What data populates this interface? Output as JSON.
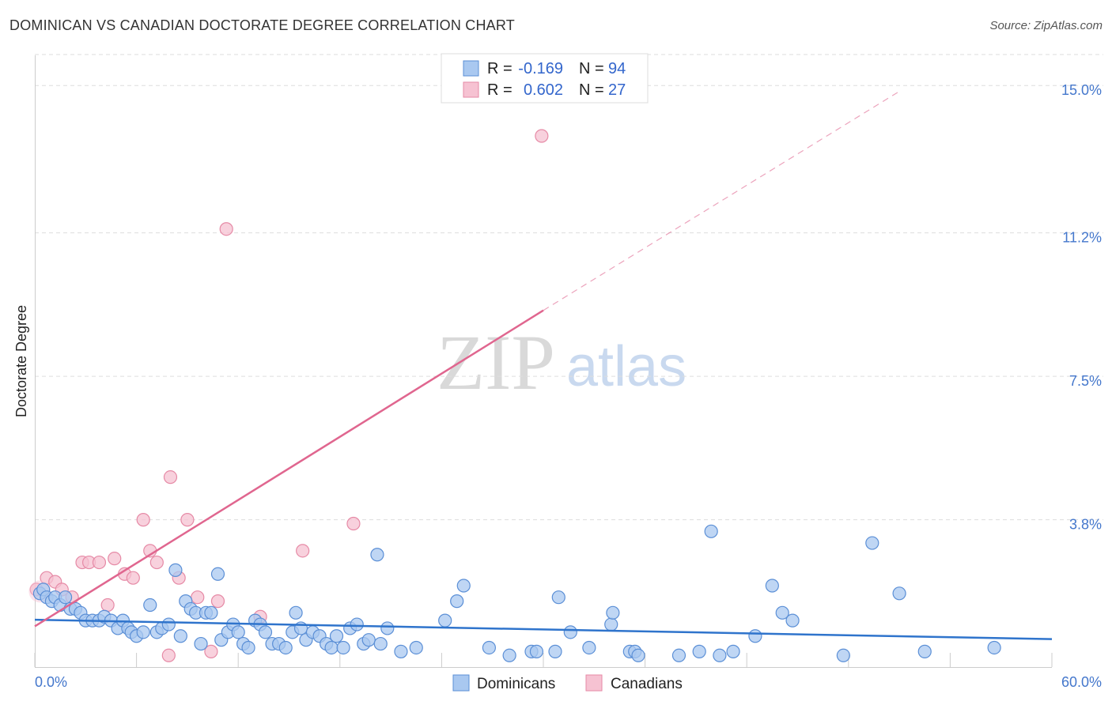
{
  "title": "DOMINICAN VS CANADIAN DOCTORATE DEGREE CORRELATION CHART",
  "source": "Source: ZipAtlas.com",
  "watermark": {
    "part1": "ZIP",
    "part2": "atlas"
  },
  "colors": {
    "blue_fill": "#a9c8f0",
    "blue_stroke": "#5b8fd6",
    "blue_line": "#2f74cc",
    "pink_fill": "#f6c2d2",
    "pink_stroke": "#e68aa6",
    "pink_line": "#e0668f",
    "grid": "#dddddd",
    "axis_label": "#4477cc"
  },
  "chart_data": {
    "type": "scatter",
    "title": "DOMINICAN VS CANADIAN DOCTORATE DEGREE CORRELATION CHART",
    "xlabel": "",
    "ylabel": "Doctorate Degree",
    "xlim": [
      0,
      60
    ],
    "ylim": [
      0,
      15.8
    ],
    "x_tick_labels": [
      "0.0%",
      "60.0%"
    ],
    "y_ticks": [
      3.8,
      7.5,
      11.2,
      15.0
    ],
    "y_tick_labels": [
      "3.8%",
      "7.5%",
      "11.2%",
      "15.0%"
    ],
    "legend": [
      {
        "swatch": "blue",
        "r_label": "R =",
        "r_value": "-0.169",
        "n_label": "N =",
        "n_value": "94"
      },
      {
        "swatch": "pink",
        "r_label": "R =",
        "r_value": "0.602",
        "n_label": "N =",
        "n_value": "27"
      }
    ],
    "series": [
      {
        "name": "Dominicans",
        "color": "blue",
        "trend": {
          "x0": 0,
          "y0": 1.22,
          "x1": 60,
          "y1": 0.72
        },
        "points": [
          [
            0.3,
            1.9
          ],
          [
            0.5,
            2.0
          ],
          [
            0.7,
            1.8
          ],
          [
            1.0,
            1.7
          ],
          [
            1.2,
            1.8
          ],
          [
            1.5,
            1.6
          ],
          [
            1.8,
            1.8
          ],
          [
            2.1,
            1.5
          ],
          [
            2.4,
            1.5
          ],
          [
            2.7,
            1.4
          ],
          [
            3.0,
            1.2
          ],
          [
            3.4,
            1.2
          ],
          [
            3.8,
            1.2
          ],
          [
            4.1,
            1.3
          ],
          [
            4.5,
            1.2
          ],
          [
            4.9,
            1.0
          ],
          [
            5.2,
            1.2
          ],
          [
            5.5,
            1.0
          ],
          [
            5.7,
            0.9
          ],
          [
            6.0,
            0.8
          ],
          [
            6.4,
            0.9
          ],
          [
            6.8,
            1.6
          ],
          [
            7.2,
            0.9
          ],
          [
            7.5,
            1.0
          ],
          [
            7.9,
            1.1
          ],
          [
            8.3,
            2.5
          ],
          [
            8.6,
            0.8
          ],
          [
            8.9,
            1.7
          ],
          [
            9.2,
            1.5
          ],
          [
            9.5,
            1.4
          ],
          [
            9.8,
            0.6
          ],
          [
            10.1,
            1.4
          ],
          [
            10.4,
            1.4
          ],
          [
            10.8,
            2.4
          ],
          [
            11.0,
            0.7
          ],
          [
            11.4,
            0.9
          ],
          [
            11.7,
            1.1
          ],
          [
            12.0,
            0.9
          ],
          [
            12.3,
            0.6
          ],
          [
            12.6,
            0.5
          ],
          [
            13.0,
            1.2
          ],
          [
            13.3,
            1.1
          ],
          [
            13.6,
            0.9
          ],
          [
            14.0,
            0.6
          ],
          [
            14.4,
            0.6
          ],
          [
            14.8,
            0.5
          ],
          [
            15.2,
            0.9
          ],
          [
            15.4,
            1.4
          ],
          [
            15.7,
            1.0
          ],
          [
            16.0,
            0.7
          ],
          [
            16.4,
            0.9
          ],
          [
            16.8,
            0.8
          ],
          [
            17.2,
            0.6
          ],
          [
            17.5,
            0.5
          ],
          [
            17.8,
            0.8
          ],
          [
            18.2,
            0.5
          ],
          [
            18.6,
            1.0
          ],
          [
            19.0,
            1.1
          ],
          [
            19.4,
            0.6
          ],
          [
            19.7,
            0.7
          ],
          [
            20.2,
            2.9
          ],
          [
            20.4,
            0.6
          ],
          [
            20.8,
            1.0
          ],
          [
            21.6,
            0.4
          ],
          [
            22.5,
            0.5
          ],
          [
            24.2,
            1.2
          ],
          [
            24.9,
            1.7
          ],
          [
            25.3,
            2.1
          ],
          [
            26.8,
            0.5
          ],
          [
            28.0,
            0.3
          ],
          [
            29.3,
            0.4
          ],
          [
            29.6,
            0.4
          ],
          [
            30.7,
            0.4
          ],
          [
            30.9,
            1.8
          ],
          [
            31.6,
            0.9
          ],
          [
            32.7,
            0.5
          ],
          [
            34.0,
            1.1
          ],
          [
            34.1,
            1.4
          ],
          [
            35.1,
            0.4
          ],
          [
            35.4,
            0.4
          ],
          [
            35.6,
            0.3
          ],
          [
            38.0,
            0.3
          ],
          [
            39.2,
            0.4
          ],
          [
            39.9,
            3.5
          ],
          [
            40.4,
            0.3
          ],
          [
            41.2,
            0.4
          ],
          [
            42.5,
            0.8
          ],
          [
            43.5,
            2.1
          ],
          [
            44.1,
            1.4
          ],
          [
            44.7,
            1.2
          ],
          [
            47.7,
            0.3
          ],
          [
            49.4,
            3.2
          ],
          [
            51.0,
            1.9
          ],
          [
            52.5,
            0.4
          ],
          [
            56.6,
            0.5
          ]
        ]
      },
      {
        "name": "Canadians",
        "color": "pink",
        "trend": {
          "x0": 0,
          "y0": 1.05,
          "x1": 30,
          "y1": 9.2,
          "dash_x1": 51,
          "dash_y1": 14.85
        },
        "points": [
          [
            0.7,
            2.3
          ],
          [
            1.2,
            2.2
          ],
          [
            1.6,
            2.0
          ],
          [
            2.2,
            1.8
          ],
          [
            2.8,
            2.7
          ],
          [
            3.2,
            2.7
          ],
          [
            3.8,
            2.7
          ],
          [
            4.3,
            1.6
          ],
          [
            4.7,
            2.8
          ],
          [
            5.3,
            2.4
          ],
          [
            5.8,
            2.3
          ],
          [
            6.4,
            3.8
          ],
          [
            6.8,
            3.0
          ],
          [
            7.2,
            2.7
          ],
          [
            7.9,
            0.3
          ],
          [
            8.0,
            4.9
          ],
          [
            8.5,
            2.3
          ],
          [
            9.0,
            3.8
          ],
          [
            9.6,
            1.8
          ],
          [
            10.4,
            0.4
          ],
          [
            10.8,
            1.7
          ],
          [
            11.3,
            11.3
          ],
          [
            13.3,
            1.3
          ],
          [
            15.8,
            3.0
          ],
          [
            18.8,
            3.7
          ],
          [
            29.9,
            13.7
          ],
          [
            0.1,
            2.0
          ]
        ]
      }
    ]
  }
}
